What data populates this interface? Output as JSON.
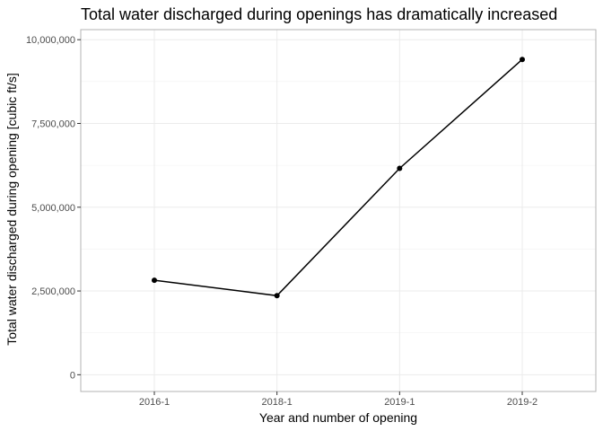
{
  "chart_data": {
    "type": "line",
    "title": "Total water discharged during openings has dramatically increased",
    "xlabel": "Year and number of opening",
    "ylabel": "Total water discharged during opening [cubic ft/s]",
    "categories": [
      "2016-1",
      "2018-1",
      "2019-1",
      "2019-2"
    ],
    "series": [
      {
        "values": [
          2820000,
          2360000,
          6160000,
          9410000
        ]
      }
    ],
    "ylim": [
      -500000,
      10300000
    ],
    "yticks": [
      0,
      2500000,
      5000000,
      7500000,
      10000000
    ],
    "ytick_labels": [
      "0",
      "2,500,000",
      "5,000,000",
      "7,500,000",
      "10,000,000"
    ],
    "grid": true,
    "colors": {
      "line": "#000000",
      "point": "#000000",
      "grid": "#ebebeb",
      "panel_border": "#b3b3b3"
    }
  }
}
